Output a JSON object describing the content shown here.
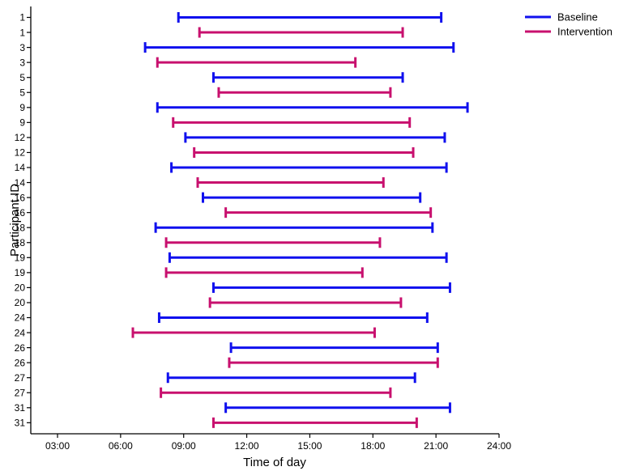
{
  "chart_data": {
    "type": "dumbbell-range",
    "title": "",
    "xlabel": "Time of day",
    "ylabel": "Participant ID",
    "xlim_hours": [
      3,
      24
    ],
    "x_ticks": [
      "03:00",
      "06:00",
      "09:00",
      "12:00",
      "15:00",
      "18:00",
      "21:00",
      "24:00"
    ],
    "grid": false,
    "legend_position": "top-right",
    "series": [
      {
        "name": "Baseline",
        "color": "#1010ee"
      },
      {
        "name": "Intervention",
        "color": "#c8106e"
      }
    ],
    "rows": [
      {
        "id": "1",
        "series": "Baseline",
        "start": "08:45",
        "end": "21:15"
      },
      {
        "id": "1",
        "series": "Intervention",
        "start": "09:45",
        "end": "19:25"
      },
      {
        "id": "3",
        "series": "Baseline",
        "start": "07:10",
        "end": "21:50"
      },
      {
        "id": "3",
        "series": "Intervention",
        "start": "07:45",
        "end": "17:10"
      },
      {
        "id": "5",
        "series": "Baseline",
        "start": "10:25",
        "end": "19:25"
      },
      {
        "id": "5",
        "series": "Intervention",
        "start": "10:40",
        "end": "18:50"
      },
      {
        "id": "9",
        "series": "Baseline",
        "start": "07:45",
        "end": "22:30"
      },
      {
        "id": "9",
        "series": "Intervention",
        "start": "08:30",
        "end": "19:45"
      },
      {
        "id": "12",
        "series": "Baseline",
        "start": "09:05",
        "end": "21:25"
      },
      {
        "id": "12",
        "series": "Intervention",
        "start": "09:30",
        "end": "19:55"
      },
      {
        "id": "14",
        "series": "Baseline",
        "start": "08:25",
        "end": "21:30"
      },
      {
        "id": "14",
        "series": "Intervention",
        "start": "09:40",
        "end": "18:30"
      },
      {
        "id": "16",
        "series": "Baseline",
        "start": "09:55",
        "end": "20:15"
      },
      {
        "id": "16",
        "series": "Intervention",
        "start": "11:00",
        "end": "20:45"
      },
      {
        "id": "18",
        "series": "Baseline",
        "start": "07:40",
        "end": "20:50"
      },
      {
        "id": "18",
        "series": "Intervention",
        "start": "08:10",
        "end": "18:20"
      },
      {
        "id": "19",
        "series": "Baseline",
        "start": "08:20",
        "end": "21:30"
      },
      {
        "id": "19",
        "series": "Intervention",
        "start": "08:10",
        "end": "17:30"
      },
      {
        "id": "20",
        "series": "Baseline",
        "start": "10:25",
        "end": "21:40"
      },
      {
        "id": "20",
        "series": "Intervention",
        "start": "10:15",
        "end": "19:20"
      },
      {
        "id": "24",
        "series": "Baseline",
        "start": "07:50",
        "end": "20:35"
      },
      {
        "id": "24",
        "series": "Intervention",
        "start": "06:35",
        "end": "18:05"
      },
      {
        "id": "26",
        "series": "Baseline",
        "start": "11:15",
        "end": "21:05"
      },
      {
        "id": "26",
        "series": "Intervention",
        "start": "11:10",
        "end": "21:05"
      },
      {
        "id": "27",
        "series": "Baseline",
        "start": "08:15",
        "end": "20:00"
      },
      {
        "id": "27",
        "series": "Intervention",
        "start": "07:55",
        "end": "18:50"
      },
      {
        "id": "31",
        "series": "Baseline",
        "start": "11:00",
        "end": "21:40"
      },
      {
        "id": "31",
        "series": "Intervention",
        "start": "10:25",
        "end": "20:05"
      }
    ]
  }
}
